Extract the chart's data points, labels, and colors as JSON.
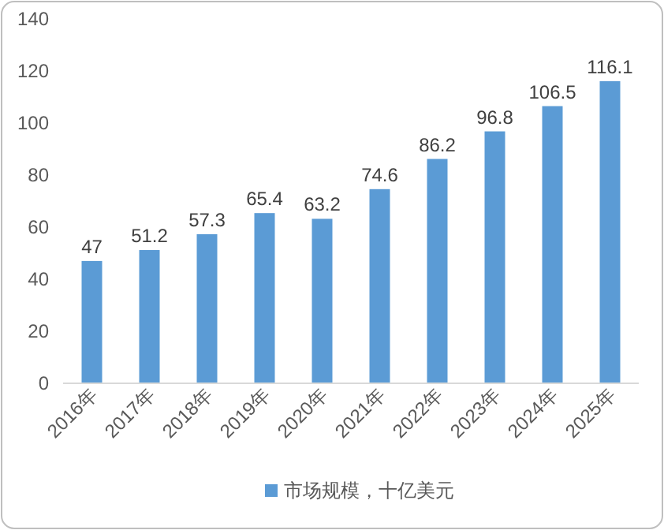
{
  "chart_data": {
    "type": "bar",
    "categories": [
      "2016年",
      "2017年",
      "2018年",
      "2019年",
      "2020年",
      "2021年",
      "2022年",
      "2023年",
      "2024年",
      "2025年"
    ],
    "series": [
      {
        "name": "市场规模，十亿美元",
        "color": "#5b9bd5",
        "values": [
          47,
          51.2,
          57.3,
          65.4,
          63.2,
          74.6,
          86.2,
          96.8,
          106.5,
          116.1
        ]
      }
    ],
    "ylim": [
      0,
      140
    ],
    "yticks": [
      0,
      20,
      40,
      60,
      80,
      100,
      120,
      140
    ],
    "data_labels": true,
    "legend": "bottom"
  }
}
